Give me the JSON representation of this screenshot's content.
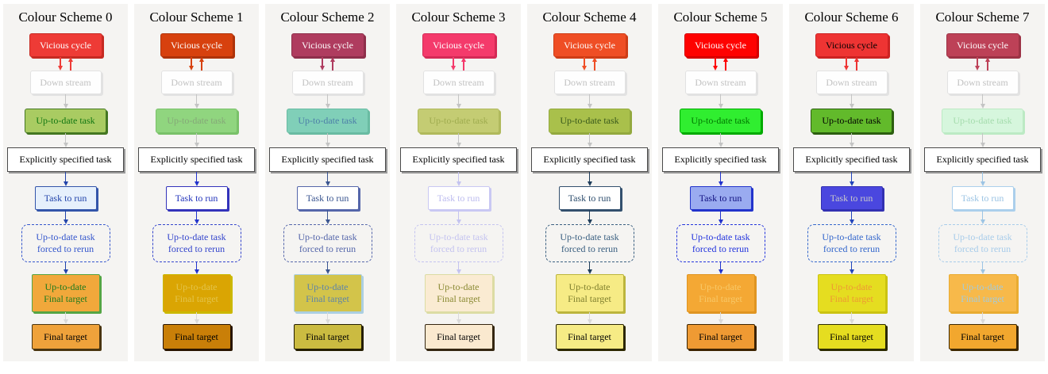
{
  "node_labels": {
    "vicious_cycle": "Vicious cycle",
    "down_stream": "Down stream",
    "up_to_date_task": "Up-to-date task",
    "explicitly_specified_task": "Explicitly specified task",
    "task_to_run": "Task to run",
    "forced_rerun_line1": "Up-to-date task",
    "forced_rerun_line2": "forced to rerun",
    "up_to_date_final_line1": "Up-to-date",
    "up_to_date_final_line2": "Final target",
    "final_target": "Final target"
  },
  "shared_colors": {
    "page_bg": "#ffffff",
    "panel_bg": "#f5f4f2",
    "title_fg": "#000000",
    "ds_bg": "#fefefe",
    "ds_fg": "#c2c2c2",
    "ds_bd": "#e2e2e2",
    "ex_bg": "#ffffff",
    "ex_fg": "#000000",
    "ex_bd": "#4a4a4a",
    "ex_sh": "#9a9a9a",
    "gray_arrow": "#c4c4c4",
    "light_arrow": "#d9d9d9"
  },
  "schemes": [
    {
      "title": "Colour Scheme 0",
      "colors": {
        "vc_bg": "#ee3b36",
        "vc_fg": "#ffffff",
        "vc_bd": "#c62a22",
        "cycle": "#ee3b36",
        "ut_bg": "#a9cb62",
        "ut_fg": "#117711",
        "ut_bd": "#447722",
        "blue": "#2244aa",
        "tr_bg": "#e6f0fc",
        "tr_fg": "#2244aa",
        "tr_bd": "#3355aa",
        "fr": "#3355cc",
        "uf_bg": "#f1a83b",
        "uf_fg": "#1e7a1e",
        "uf_bd": "#55a544",
        "ft_bg": "#efa23b",
        "ft_fg": "#000000",
        "ft_bd": "#4a3510"
      }
    },
    {
      "title": "Colour Scheme 1",
      "colors": {
        "vc_bg": "#d7410e",
        "vc_fg": "#ffffff",
        "vc_bd": "#ae330a",
        "cycle": "#d7410e",
        "ut_bg": "#90d57f",
        "ut_fg": "#85a878",
        "ut_bd": "#79c169",
        "blue": "#2233cc",
        "tr_bg": "#ffffff",
        "tr_fg": "#2233bb",
        "tr_bd": "#3333bb",
        "fr": "#3344cc",
        "uf_bg": "#daa503",
        "uf_fg": "#e4c44a",
        "uf_bd": "#cbb803",
        "ft_bg": "#c97f08",
        "ft_fg": "#000000",
        "ft_bd": "#281400"
      }
    },
    {
      "title": "Colour Scheme 2",
      "colors": {
        "vc_bg": "#af3c5f",
        "vc_fg": "#ffffff",
        "vc_bd": "#8e2f4b",
        "cycle": "#af3c5f",
        "ut_bg": "#80cfb8",
        "ut_fg": "#4c7fa8",
        "ut_bd": "#69bba2",
        "blue": "#3a5590",
        "tr_bg": "#ffffff",
        "tr_fg": "#3a5590",
        "tr_bd": "#5566aa",
        "fr": "#5566aa",
        "uf_bg": "#d3c44a",
        "uf_fg": "#5e84a8",
        "uf_bd": "#accfe2",
        "ft_bg": "#cbbb41",
        "ft_fg": "#000000",
        "ft_bd": "#241d00"
      }
    },
    {
      "title": "Colour Scheme 3",
      "colors": {
        "vc_bg": "#f43a6b",
        "vc_fg": "#ffffff",
        "vc_bd": "#d42a56",
        "cycle": "#f43a6b",
        "ut_bg": "#c4cc73",
        "ut_fg": "#9fac4f",
        "ut_bd": "#b0b95c",
        "blue": "#c4c3f0",
        "tr_bg": "#ffffff",
        "tr_fg": "#bdbcef",
        "tr_bd": "#c9c8f3",
        "fr": "#c4c3f0",
        "uf_bg": "#faebd2",
        "uf_fg": "#8a8a33",
        "uf_bd": "#dcdca4",
        "ft_bg": "#fae9cf",
        "ft_fg": "#000000",
        "ft_bd": "#342611"
      }
    },
    {
      "title": "Colour Scheme 4",
      "colors": {
        "vc_bg": "#ef4e25",
        "vc_fg": "#ffffff",
        "vc_bd": "#ce3d17",
        "cycle": "#ef4e25",
        "ut_bg": "#a9c04b",
        "ut_fg": "#39591b",
        "ut_bd": "#93a93e",
        "blue": "#1e3c5a",
        "tr_bg": "#ffffff",
        "tr_fg": "#2e4e6e",
        "tr_bd": "#33506e",
        "fr": "#3a5f80",
        "uf_bg": "#f6eb85",
        "uf_fg": "#80802f",
        "uf_bd": "#bcb53d",
        "ft_bg": "#f6eb85",
        "ft_fg": "#000000",
        "ft_bd": "#2c2700"
      }
    },
    {
      "title": "Colour Scheme 5",
      "colors": {
        "vc_bg": "#fe0201",
        "vc_fg": "#ffffff",
        "vc_bd": "#d40000",
        "cycle": "#fe0201",
        "ut_bg": "#30ee30",
        "ut_fg": "#007700",
        "ut_bd": "#00aa00",
        "blue": "#2233cc",
        "tr_bg": "#9aabf0",
        "tr_fg": "#101080",
        "tr_bd": "#2233cc",
        "fr": "#2233dd",
        "uf_bg": "#f4a834",
        "uf_fg": "#f8c968",
        "uf_bd": "#e09522",
        "ft_bg": "#ef9a33",
        "ft_fg": "#000000",
        "ft_bd": "#3c2300"
      }
    },
    {
      "title": "Colour Scheme 6",
      "colors": {
        "vc_bg": "#ee3433",
        "vc_fg": "#000000",
        "vc_bd": "#cc2222",
        "cycle": "#ee3433",
        "ut_bg": "#62ba2b",
        "ut_fg": "#000000",
        "ut_bd": "#2c5e10",
        "blue": "#2244bb",
        "tr_bg": "#4a47df",
        "tr_fg": "#c9c9c9",
        "tr_bd": "#3331b2",
        "fr": "#3366cc",
        "uf_bg": "#e5dd20",
        "uf_fg": "#ee9933",
        "uf_bd": "#cbc312",
        "ft_bg": "#e5dd20",
        "ft_fg": "#000000",
        "ft_bd": "#2c2a00"
      }
    },
    {
      "title": "Colour Scheme 7",
      "colors": {
        "vc_bg": "#bd4157",
        "vc_fg": "#ffffff",
        "vc_bd": "#9c3245",
        "cycle": "#bd4157",
        "ut_bg": "#d6f6dd",
        "ut_fg": "#a5dcad",
        "ut_bd": "#bceac4",
        "blue": "#9cc4e4",
        "tr_bg": "#ffffff",
        "tr_fg": "#9cc4e4",
        "tr_bd": "#abcfec",
        "fr": "#a8ccea",
        "uf_bg": "#f7b94a",
        "uf_fg": "#a3cbdd",
        "uf_bd": "#e9ac32",
        "ft_bg": "#f2a72e",
        "ft_fg": "#000000",
        "ft_bd": "#3d2800"
      }
    }
  ]
}
